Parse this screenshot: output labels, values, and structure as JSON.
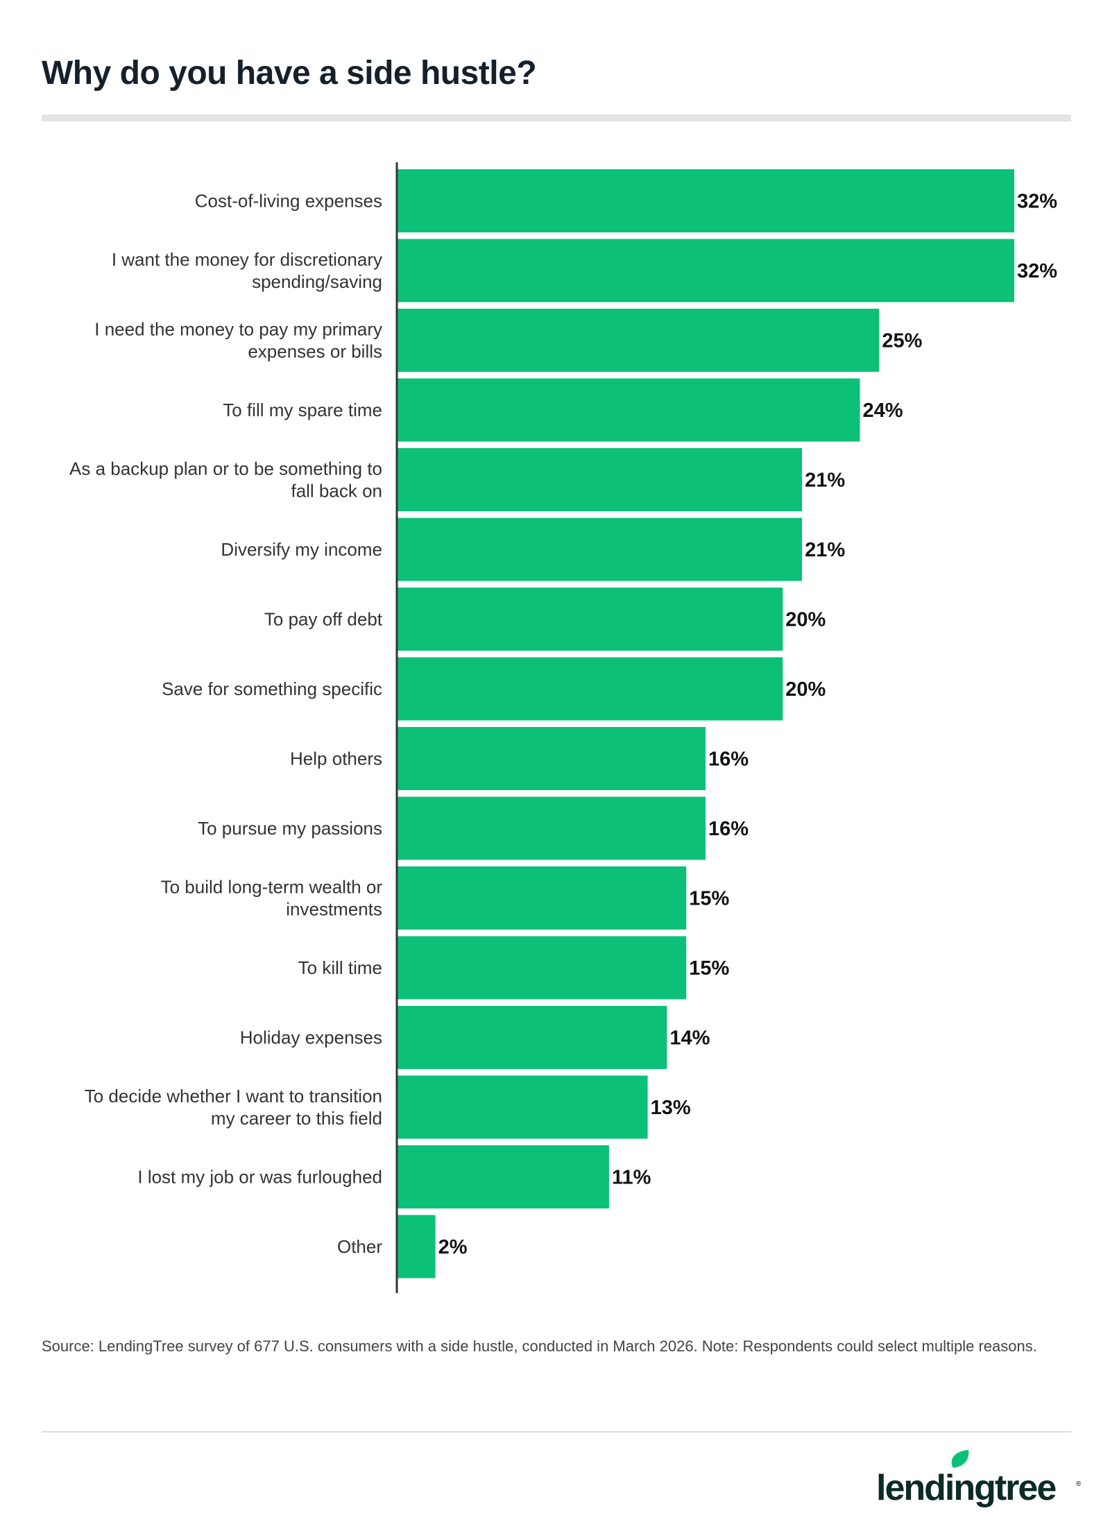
{
  "header": {
    "title": "Why do you have a side hustle?"
  },
  "chart_data": {
    "type": "bar",
    "orientation": "horizontal",
    "categories": [
      [
        "Cost-of-living expenses"
      ],
      [
        "I want the money for discretionary",
        "spending/saving"
      ],
      [
        "I need the money to pay my primary",
        "expenses or bills"
      ],
      [
        "To fill my spare time"
      ],
      [
        "As a backup plan or to be something to",
        "fall back on"
      ],
      [
        "Diversify my income"
      ],
      [
        "To pay off debt"
      ],
      [
        "Save for something specific"
      ],
      [
        "Help others"
      ],
      [
        "To pursue my passions"
      ],
      [
        "To build long-term wealth or",
        "investments"
      ],
      [
        "To kill time"
      ],
      [
        "Holiday expenses"
      ],
      [
        "To decide whether I want to transition",
        "my career to this field"
      ],
      [
        "I lost my job or was furloughed"
      ],
      [
        "Other"
      ]
    ],
    "values": [
      32,
      32,
      25,
      24,
      21,
      21,
      20,
      20,
      16,
      16,
      15,
      15,
      14,
      13,
      11,
      2
    ],
    "labels": [
      "32%",
      "32%",
      "25%",
      "24%",
      "21%",
      "21%",
      "20%",
      "20%",
      "16%",
      "16%",
      "15%",
      "15%",
      "14%",
      "13%",
      "11%",
      "2%"
    ],
    "unit": "%",
    "xlim": [
      0,
      32
    ],
    "bar_color": "#0cc177",
    "grid": false
  },
  "footer": {
    "source": "Source: LendingTree survey of 677 U.S. consumers with a side hustle, conducted in March 2026. Note: Respondents could select multiple reasons."
  },
  "brand": {
    "logo_text": "lendingtree",
    "logo_color": "#0b2b26",
    "leaf_color": "#0cc177"
  }
}
